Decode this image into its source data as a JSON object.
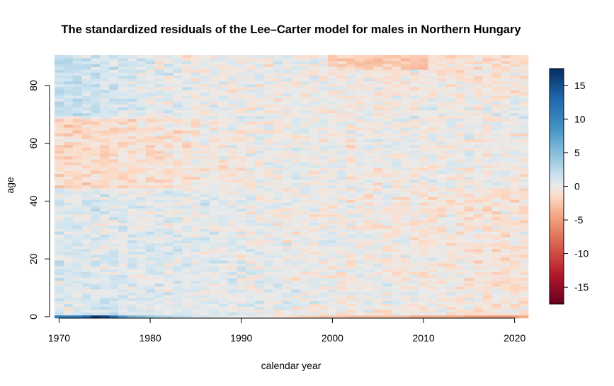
{
  "chart_data": {
    "type": "heatmap",
    "title": "The standardized residuals of the Lee–Carter model for males in Northern Hungary",
    "xlabel": "calendar year",
    "ylabel": "age",
    "x_start": 1970,
    "x_end": 2021,
    "y_start": 0,
    "y_end": 90,
    "xlim": [
      1969.5,
      2021.5
    ],
    "ylim": [
      -0.5,
      90.5
    ],
    "x_ticks": [
      1970,
      1980,
      1990,
      2000,
      2010,
      2020
    ],
    "y_ticks": [
      0,
      20,
      40,
      60,
      80
    ],
    "colorbar": {
      "range": [
        -17.5,
        17.5
      ],
      "ticks": [
        15,
        10,
        5,
        0,
        -5,
        -10,
        -15
      ],
      "tick_labels": [
        "15",
        "10",
        "5",
        "0",
        "-5",
        "-10",
        "-15"
      ],
      "palette": "RdBu"
    },
    "row_age0_values": [
      11,
      11,
      11,
      13,
      17,
      16,
      12,
      8,
      6,
      5,
      4,
      3,
      3,
      2,
      2,
      1,
      1,
      0.5,
      0.5,
      0,
      0,
      0,
      0,
      0,
      -0.5,
      -1,
      -1.5,
      -2,
      -2,
      -2.5,
      -2.5,
      -2.5,
      -3,
      -3,
      -3,
      -3,
      -3,
      -3,
      -3,
      -4,
      -4,
      -4,
      -4,
      -4,
      -4,
      -5,
      -5,
      -5,
      -5,
      -5,
      -5,
      -4
    ]
  }
}
